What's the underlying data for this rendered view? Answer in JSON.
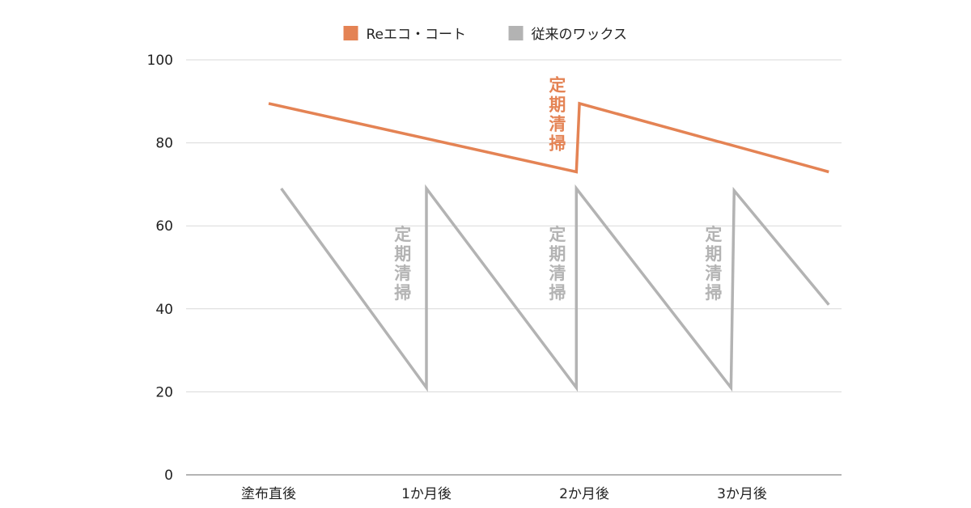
{
  "chart_data": {
    "type": "line",
    "title": "",
    "xlabel": "",
    "ylabel": "",
    "ylim": [
      0,
      100
    ],
    "yticks": [
      0,
      20,
      40,
      60,
      80,
      100
    ],
    "categories": [
      "塗布直後",
      "1か月後",
      "2か月後",
      "3か月後"
    ],
    "grid": true,
    "legend_position": "top-center",
    "series": [
      {
        "name": "Reエコ・コート",
        "color": "#e48354",
        "points": [
          {
            "x": 0,
            "y": 89.5
          },
          {
            "x": 1.95,
            "y": 73
          },
          {
            "x": 1.97,
            "y": 89.5
          },
          {
            "x": 3.55,
            "y": 73
          }
        ]
      },
      {
        "name": "従来のワックス",
        "color": "#b3b3b3",
        "points": [
          {
            "x": 0.08,
            "y": 69
          },
          {
            "x": 1.0,
            "y": 21
          },
          {
            "x": 1.0,
            "y": 69
          },
          {
            "x": 1.95,
            "y": 21
          },
          {
            "x": 1.95,
            "y": 69
          },
          {
            "x": 2.93,
            "y": 21
          },
          {
            "x": 2.95,
            "y": 68.5
          },
          {
            "x": 3.55,
            "y": 41
          }
        ]
      }
    ],
    "annotations": [
      {
        "text": "定期清掃",
        "x": 1.83,
        "y": 96,
        "color": "#e48354"
      },
      {
        "text": "定期清掃",
        "x": 0.85,
        "y": 60,
        "color": "#b3b3b3"
      },
      {
        "text": "定期清掃",
        "x": 1.83,
        "y": 60,
        "color": "#b3b3b3"
      },
      {
        "text": "定期清掃",
        "x": 2.82,
        "y": 60,
        "color": "#b3b3b3"
      }
    ]
  }
}
